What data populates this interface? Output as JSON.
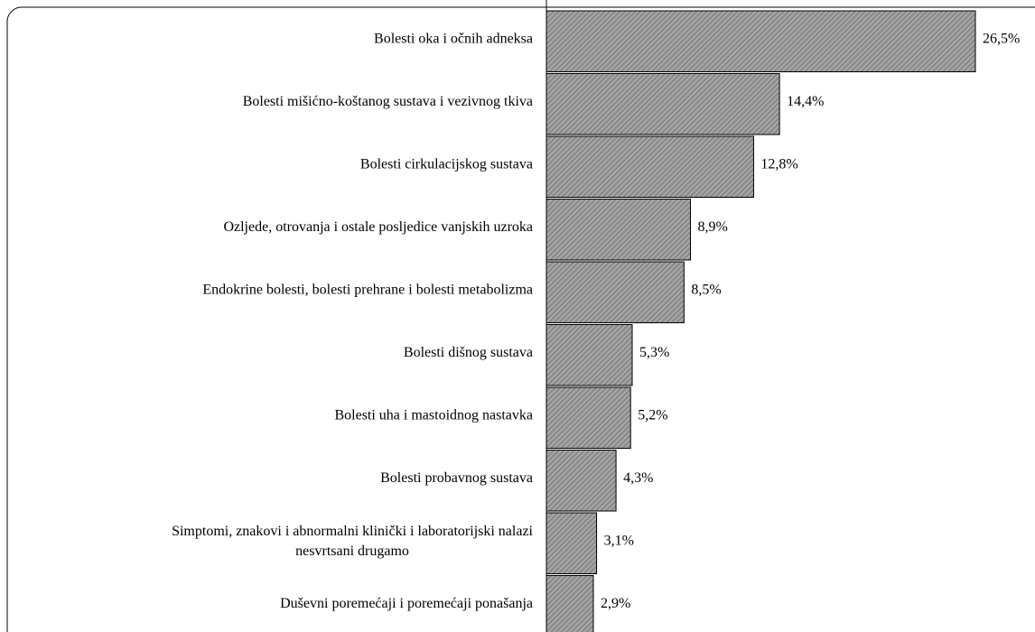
{
  "chart_data": {
    "type": "barh",
    "categories": [
      "Bolesti oka i očnih adneksa",
      "Bolesti mišićno-koštanog sustava i vezivnog tkiva",
      "Bolesti cirkulacijskog sustava",
      "Ozljede, otrovanja i ostale posljedice vanjskih uzroka",
      "Endokrine bolesti, bolesti prehrane i bolesti metabolizma",
      "Bolesti dišnog sustava",
      "Bolesti uha i mastoidnog nastavka",
      "Bolesti probavnog sustava",
      "Simptomi, znakovi i abnormalni klinički i laboratorijski nalazi\nnesvrtsani drugamo",
      "Duševni poremećaji i poremećaji ponašanja"
    ],
    "values": [
      26.5,
      14.4,
      12.8,
      8.9,
      8.5,
      5.3,
      5.2,
      4.3,
      3.1,
      2.9
    ],
    "value_labels": [
      "26,5%",
      "14,4%",
      "12,8%",
      "8,9%",
      "8,5%",
      "5,3%",
      "5,2%",
      "4,3%",
      "3,1%",
      "2,9%"
    ],
    "color": "#8c8c8c"
  }
}
